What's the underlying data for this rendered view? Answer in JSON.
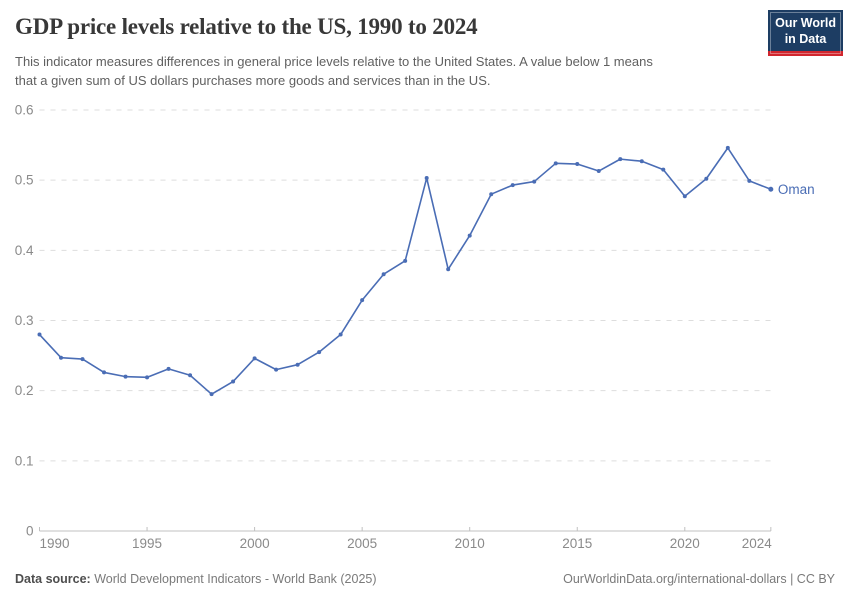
{
  "header": {
    "title": "GDP price levels relative to the US, 1990 to 2024",
    "subtitle_line1": "This indicator measures differences in general price levels relative to the United States. A value below 1 means",
    "subtitle_line2": "that a given sum of US dollars purchases more goods and services than in the US.",
    "logo": {
      "line1": "Our World",
      "line2": "in Data",
      "bg_color": "#1d3d63",
      "accent_color": "#d1262e"
    }
  },
  "chart_data": {
    "type": "line",
    "title": "GDP price levels relative to the US, 1990 to 2024",
    "xlabel": "",
    "ylabel": "",
    "x_range": [
      1990,
      2024
    ],
    "ylim": [
      0,
      0.6
    ],
    "yticks": [
      0,
      0.1,
      0.2,
      0.3,
      0.4,
      0.5,
      0.6
    ],
    "xticks": [
      1990,
      1995,
      2000,
      2005,
      2010,
      2015,
      2020,
      2024
    ],
    "grid": "horizontal-dashed",
    "legend_position": "end-of-line-label",
    "grid_color": "#dddddd",
    "axis_color": "#c0c0c0",
    "label_color": "#8a8a8a",
    "series": [
      {
        "name": "Oman",
        "color": "#4a6db5",
        "x": [
          1990,
          1991,
          1992,
          1993,
          1994,
          1995,
          1996,
          1997,
          1998,
          1999,
          2000,
          2001,
          2002,
          2003,
          2004,
          2005,
          2006,
          2007,
          2008,
          2009,
          2010,
          2011,
          2012,
          2013,
          2014,
          2015,
          2016,
          2017,
          2018,
          2019,
          2020,
          2021,
          2022,
          2023,
          2024
        ],
        "values": [
          0.28,
          0.247,
          0.245,
          0.226,
          0.22,
          0.219,
          0.231,
          0.222,
          0.195,
          0.213,
          0.246,
          0.23,
          0.237,
          0.255,
          0.28,
          0.329,
          0.366,
          0.385,
          0.503,
          0.373,
          0.421,
          0.48,
          0.493,
          0.498,
          0.524,
          0.523,
          0.513,
          0.53,
          0.527,
          0.515,
          0.477,
          0.502,
          0.546,
          0.499,
          0.487
        ]
      }
    ]
  },
  "footer": {
    "data_source_label": "Data source:",
    "data_source_text": " World Development Indicators - World Bank (2025)",
    "attribution": "OurWorldinData.org/international-dollars | CC BY"
  }
}
